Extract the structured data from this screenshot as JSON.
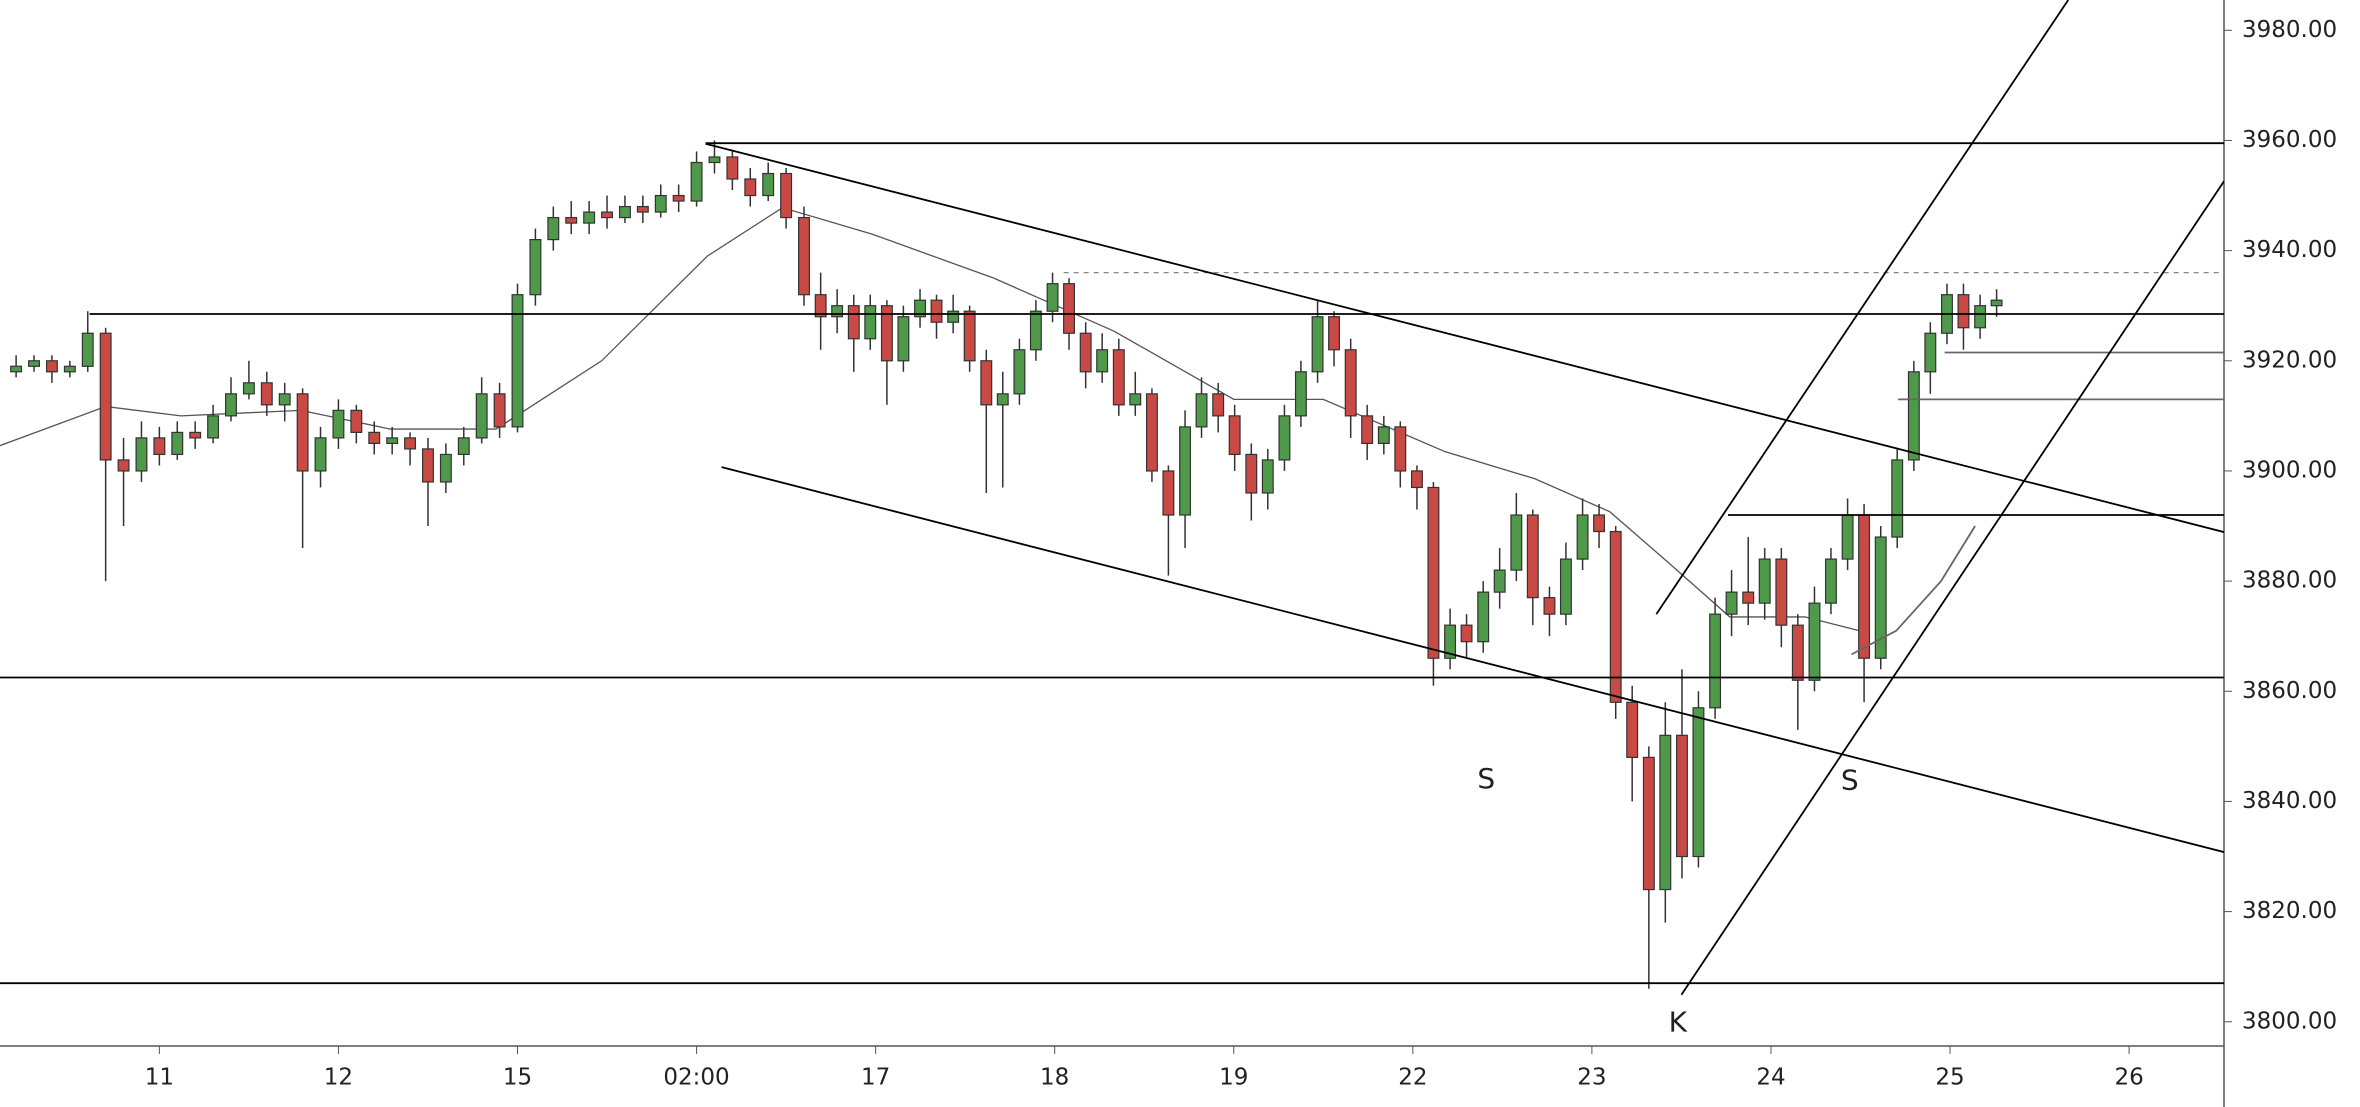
{
  "chart_data": {
    "type": "candlestick",
    "xlim": [
      0.11,
      12.53
    ],
    "ylim": [
      3795.6,
      3985.5
    ],
    "xticks": [
      {
        "value": 1,
        "label": "11"
      },
      {
        "value": 2,
        "label": "12"
      },
      {
        "value": 3,
        "label": "15"
      },
      {
        "value": 4,
        "label": "02:00"
      },
      {
        "value": 5,
        "label": "17"
      },
      {
        "value": 6,
        "label": "18"
      },
      {
        "value": 7,
        "label": "19"
      },
      {
        "value": 8,
        "label": "22"
      },
      {
        "value": 9,
        "label": "23"
      },
      {
        "value": 10,
        "label": "24"
      },
      {
        "value": 11,
        "label": "25"
      },
      {
        "value": 12,
        "label": "26"
      }
    ],
    "yticks": [
      {
        "value": 3800,
        "label": "3800.00"
      },
      {
        "value": 3820,
        "label": "3820.00"
      },
      {
        "value": 3840,
        "label": "3840.00"
      },
      {
        "value": 3860,
        "label": "3860.00"
      },
      {
        "value": 3880,
        "label": "3880.00"
      },
      {
        "value": 3900,
        "label": "3900.00"
      },
      {
        "value": 3920,
        "label": "3920.00"
      },
      {
        "value": 3940,
        "label": "3940.00"
      },
      {
        "value": 3960,
        "label": "3960.00"
      },
      {
        "value": 3980,
        "label": "3980.00"
      }
    ],
    "up_color": "#4e9a4a",
    "down_color": "#c94a44",
    "x": [
      0.2,
      0.3,
      0.4,
      0.5,
      0.6,
      0.7,
      0.8,
      0.9,
      1.0,
      1.1,
      1.2,
      1.3,
      1.4,
      1.5,
      1.6,
      1.7,
      1.8,
      1.9,
      2.0,
      2.1,
      2.2,
      2.3,
      2.4,
      2.5,
      2.6,
      2.7,
      2.8,
      2.9,
      3.0,
      3.1,
      3.2,
      3.3,
      3.4,
      3.5,
      3.6,
      3.7,
      3.8,
      3.9,
      4.0,
      4.1,
      4.2,
      4.3,
      4.4,
      4.5,
      4.6,
      4.693,
      4.785,
      4.878,
      4.97,
      5.063,
      5.155,
      5.248,
      5.34,
      5.433,
      5.525,
      5.618,
      5.71,
      5.803,
      5.895,
      5.988,
      6.08,
      6.173,
      6.265,
      6.358,
      6.45,
      6.543,
      6.635,
      6.728,
      6.82,
      6.913,
      7.005,
      7.098,
      7.19,
      7.283,
      7.375,
      7.468,
      7.56,
      7.653,
      7.745,
      7.838,
      7.93,
      8.023,
      8.115,
      8.208,
      8.3,
      8.393,
      8.485,
      8.578,
      8.67,
      8.763,
      8.855,
      8.948,
      9.04,
      9.133,
      9.225,
      9.318,
      9.41,
      9.503,
      9.595,
      9.688,
      9.78,
      9.873,
      9.965,
      10.058,
      10.15,
      10.243,
      10.335,
      10.428,
      10.52,
      10.613,
      10.705,
      10.798,
      10.89,
      10.983,
      11.075,
      11.168,
      11.26
    ],
    "ohlc": [
      [
        3918,
        3921,
        3917,
        3919
      ],
      [
        3919,
        3921,
        3918,
        3920
      ],
      [
        3920,
        3921,
        3916,
        3918
      ],
      [
        3918,
        3920,
        3917,
        3919
      ],
      [
        3919,
        3929,
        3918,
        3925
      ],
      [
        3925,
        3926,
        3880,
        3902
      ],
      [
        3902,
        3906,
        3890,
        3900
      ],
      [
        3900,
        3909,
        3898,
        3906
      ],
      [
        3906,
        3908,
        3901,
        3903
      ],
      [
        3903,
        3909,
        3902,
        3907
      ],
      [
        3907,
        3909,
        3904,
        3906
      ],
      [
        3906,
        3912,
        3905,
        3910
      ],
      [
        3910,
        3917,
        3909,
        3914
      ],
      [
        3914,
        3920,
        3913,
        3916
      ],
      [
        3916,
        3918,
        3910,
        3912
      ],
      [
        3912,
        3916,
        3909,
        3914
      ],
      [
        3914,
        3915,
        3886,
        3900
      ],
      [
        3900,
        3908,
        3897,
        3906
      ],
      [
        3906,
        3913,
        3904,
        3911
      ],
      [
        3911,
        3912,
        3905,
        3907
      ],
      [
        3907,
        3909,
        3903,
        3905
      ],
      [
        3905,
        3908,
        3903,
        3906
      ],
      [
        3906,
        3907,
        3901,
        3904
      ],
      [
        3904,
        3906,
        3890,
        3898
      ],
      [
        3898,
        3905,
        3896,
        3903
      ],
      [
        3903,
        3908,
        3901,
        3906
      ],
      [
        3906,
        3917,
        3905,
        3914
      ],
      [
        3914,
        3916,
        3906,
        3908
      ],
      [
        3908,
        3934,
        3907,
        3932
      ],
      [
        3932,
        3944,
        3930,
        3942
      ],
      [
        3942,
        3948,
        3940,
        3946
      ],
      [
        3946,
        3949,
        3943,
        3945
      ],
      [
        3945,
        3949,
        3943,
        3947
      ],
      [
        3947,
        3950,
        3944,
        3946
      ],
      [
        3946,
        3950,
        3945,
        3948
      ],
      [
        3948,
        3950,
        3945,
        3947
      ],
      [
        3947,
        3952,
        3946,
        3950
      ],
      [
        3950,
        3952,
        3947,
        3949
      ],
      [
        3949,
        3958,
        3948,
        3956
      ],
      [
        3956,
        3960,
        3954,
        3957
      ],
      [
        3957,
        3958,
        3951,
        3953
      ],
      [
        3953,
        3955,
        3948,
        3950
      ],
      [
        3950,
        3956,
        3949,
        3954
      ],
      [
        3954,
        3955,
        3944,
        3946
      ],
      [
        3946,
        3948,
        3930,
        3932
      ],
      [
        3932,
        3936,
        3922,
        3928
      ],
      [
        3928,
        3933,
        3925,
        3930
      ],
      [
        3930,
        3932,
        3918,
        3924
      ],
      [
        3924,
        3932,
        3922,
        3930
      ],
      [
        3930,
        3931,
        3912,
        3920
      ],
      [
        3920,
        3930,
        3918,
        3928
      ],
      [
        3928,
        3933,
        3926,
        3931
      ],
      [
        3931,
        3932,
        3924,
        3927
      ],
      [
        3927,
        3932,
        3925,
        3929
      ],
      [
        3929,
        3930,
        3918,
        3920
      ],
      [
        3920,
        3922,
        3896,
        3912
      ],
      [
        3912,
        3918,
        3897,
        3914
      ],
      [
        3914,
        3924,
        3912,
        3922
      ],
      [
        3922,
        3931,
        3920,
        3929
      ],
      [
        3929,
        3936,
        3927,
        3934
      ],
      [
        3934,
        3935,
        3922,
        3925
      ],
      [
        3925,
        3927,
        3915,
        3918
      ],
      [
        3918,
        3925,
        3916,
        3922
      ],
      [
        3922,
        3924,
        3910,
        3912
      ],
      [
        3912,
        3918,
        3910,
        3914
      ],
      [
        3914,
        3915,
        3898,
        3900
      ],
      [
        3900,
        3901,
        3881,
        3892
      ],
      [
        3892,
        3911,
        3886,
        3908
      ],
      [
        3908,
        3917,
        3906,
        3914
      ],
      [
        3914,
        3916,
        3907,
        3910
      ],
      [
        3910,
        3912,
        3900,
        3903
      ],
      [
        3903,
        3905,
        3891,
        3896
      ],
      [
        3896,
        3904,
        3893,
        3902
      ],
      [
        3902,
        3912,
        3900,
        3910
      ],
      [
        3910,
        3920,
        3908,
        3918
      ],
      [
        3918,
        3931,
        3916,
        3928
      ],
      [
        3928,
        3929,
        3919,
        3922
      ],
      [
        3922,
        3924,
        3906,
        3910
      ],
      [
        3910,
        3912,
        3902,
        3905
      ],
      [
        3905,
        3910,
        3903,
        3908
      ],
      [
        3908,
        3909,
        3897,
        3900
      ],
      [
        3900,
        3901,
        3893,
        3897
      ],
      [
        3897,
        3898,
        3861,
        3866
      ],
      [
        3866,
        3875,
        3864,
        3872
      ],
      [
        3872,
        3874,
        3866,
        3869
      ],
      [
        3869,
        3880,
        3867,
        3878
      ],
      [
        3878,
        3886,
        3875,
        3882
      ],
      [
        3882,
        3896,
        3880,
        3892
      ],
      [
        3892,
        3893,
        3872,
        3877
      ],
      [
        3877,
        3879,
        3870,
        3874
      ],
      [
        3874,
        3887,
        3872,
        3884
      ],
      [
        3884,
        3895,
        3882,
        3892
      ],
      [
        3892,
        3894,
        3886,
        3889
      ],
      [
        3889,
        3890,
        3855,
        3858
      ],
      [
        3858,
        3861,
        3840,
        3848
      ],
      [
        3848,
        3850,
        3806,
        3824
      ],
      [
        3824,
        3858,
        3818,
        3852
      ],
      [
        3852,
        3864,
        3826,
        3830
      ],
      [
        3830,
        3860,
        3828,
        3857
      ],
      [
        3857,
        3877,
        3855,
        3874
      ],
      [
        3874,
        3882,
        3870,
        3878
      ],
      [
        3878,
        3888,
        3872,
        3876
      ],
      [
        3876,
        3886,
        3873,
        3884
      ],
      [
        3884,
        3886,
        3868,
        3872
      ],
      [
        3872,
        3874,
        3853,
        3862
      ],
      [
        3862,
        3879,
        3860,
        3876
      ],
      [
        3876,
        3886,
        3874,
        3884
      ],
      [
        3884,
        3895,
        3882,
        3892
      ],
      [
        3892,
        3894,
        3858,
        3866
      ],
      [
        3866,
        3890,
        3864,
        3888
      ],
      [
        3888,
        3904,
        3886,
        3902
      ],
      [
        3902,
        3920,
        3900,
        3918
      ],
      [
        3918,
        3927,
        3914,
        3925
      ],
      [
        3925,
        3934,
        3923,
        3932
      ],
      [
        3932,
        3934,
        3922,
        3926
      ],
      [
        3926,
        3932,
        3924,
        3930
      ],
      [
        3930,
        3933,
        3928,
        3931
      ]
    ],
    "ma": {
      "color": "#555555",
      "x": [
        0.11,
        0.7,
        1.12,
        1.79,
        2.29,
        2.88,
        3.47,
        4.06,
        4.48,
        4.98,
        5.66,
        6.33,
        7.0,
        7.5,
        8.18,
        8.68,
        9.1,
        9.44,
        9.77,
        10.19,
        10.53
      ],
      "values": [
        3904.6,
        3911.7,
        3910,
        3911,
        3907.6,
        3907.6,
        3920,
        3939,
        3947.8,
        3943,
        3935,
        3925.4,
        3913,
        3913,
        3903.5,
        3898.6,
        3892.6,
        3883,
        3873.5,
        3873.5,
        3870.7
      ]
    },
    "lines": [
      {
        "color": "#000000",
        "points": [
          [
            4.05,
            3959.5
          ],
          [
            12.53,
            3959.5
          ]
        ]
      },
      {
        "color": "#000000",
        "points": [
          [
            0.61,
            3928.5
          ],
          [
            12.53,
            3928.5
          ]
        ]
      },
      {
        "color": "#000000",
        "points": [
          [
            0.11,
            3862.5
          ],
          [
            12.53,
            3862.5
          ]
        ]
      },
      {
        "color": "#000000",
        "points": [
          [
            0.11,
            3807
          ],
          [
            12.53,
            3807
          ]
        ]
      },
      {
        "color": "#000000",
        "points": [
          [
            9.76,
            3892
          ],
          [
            12.53,
            3892
          ]
        ]
      },
      {
        "color": "#888888",
        "dashed": true,
        "points": [
          [
            6.05,
            3936
          ],
          [
            12.53,
            3936
          ]
        ]
      },
      {
        "color": "#666666",
        "points": [
          [
            10.97,
            3921.5
          ],
          [
            12.53,
            3921.5
          ]
        ]
      },
      {
        "color": "#666666",
        "points": [
          [
            10.71,
            3913
          ],
          [
            12.53,
            3913
          ]
        ]
      },
      {
        "color": "#000000",
        "points": [
          [
            4.05,
            3959.4
          ],
          [
            12.53,
            3888.9
          ]
        ]
      },
      {
        "color": "#000000",
        "points": [
          [
            4.14,
            3900.7
          ],
          [
            12.53,
            3830.8
          ]
        ]
      },
      {
        "color": "#000000",
        "points": [
          [
            9.36,
            3874
          ],
          [
            11.66,
            3985.5
          ]
        ]
      },
      {
        "color": "#000000",
        "points": [
          [
            9.5,
            3804.9
          ],
          [
            12.53,
            3952.6
          ]
        ]
      },
      {
        "color": "#666666",
        "points": [
          [
            10.45,
            3866.7
          ],
          [
            10.7,
            3871
          ],
          [
            10.95,
            3880
          ],
          [
            11.14,
            3890
          ]
        ]
      }
    ],
    "annotations": [
      {
        "text": "S",
        "x": 8.41,
        "y": 3843.9
      },
      {
        "text": "S",
        "x": 10.44,
        "y": 3843.6
      },
      {
        "text": "K",
        "x": 9.48,
        "y": 3799.7
      }
    ]
  }
}
